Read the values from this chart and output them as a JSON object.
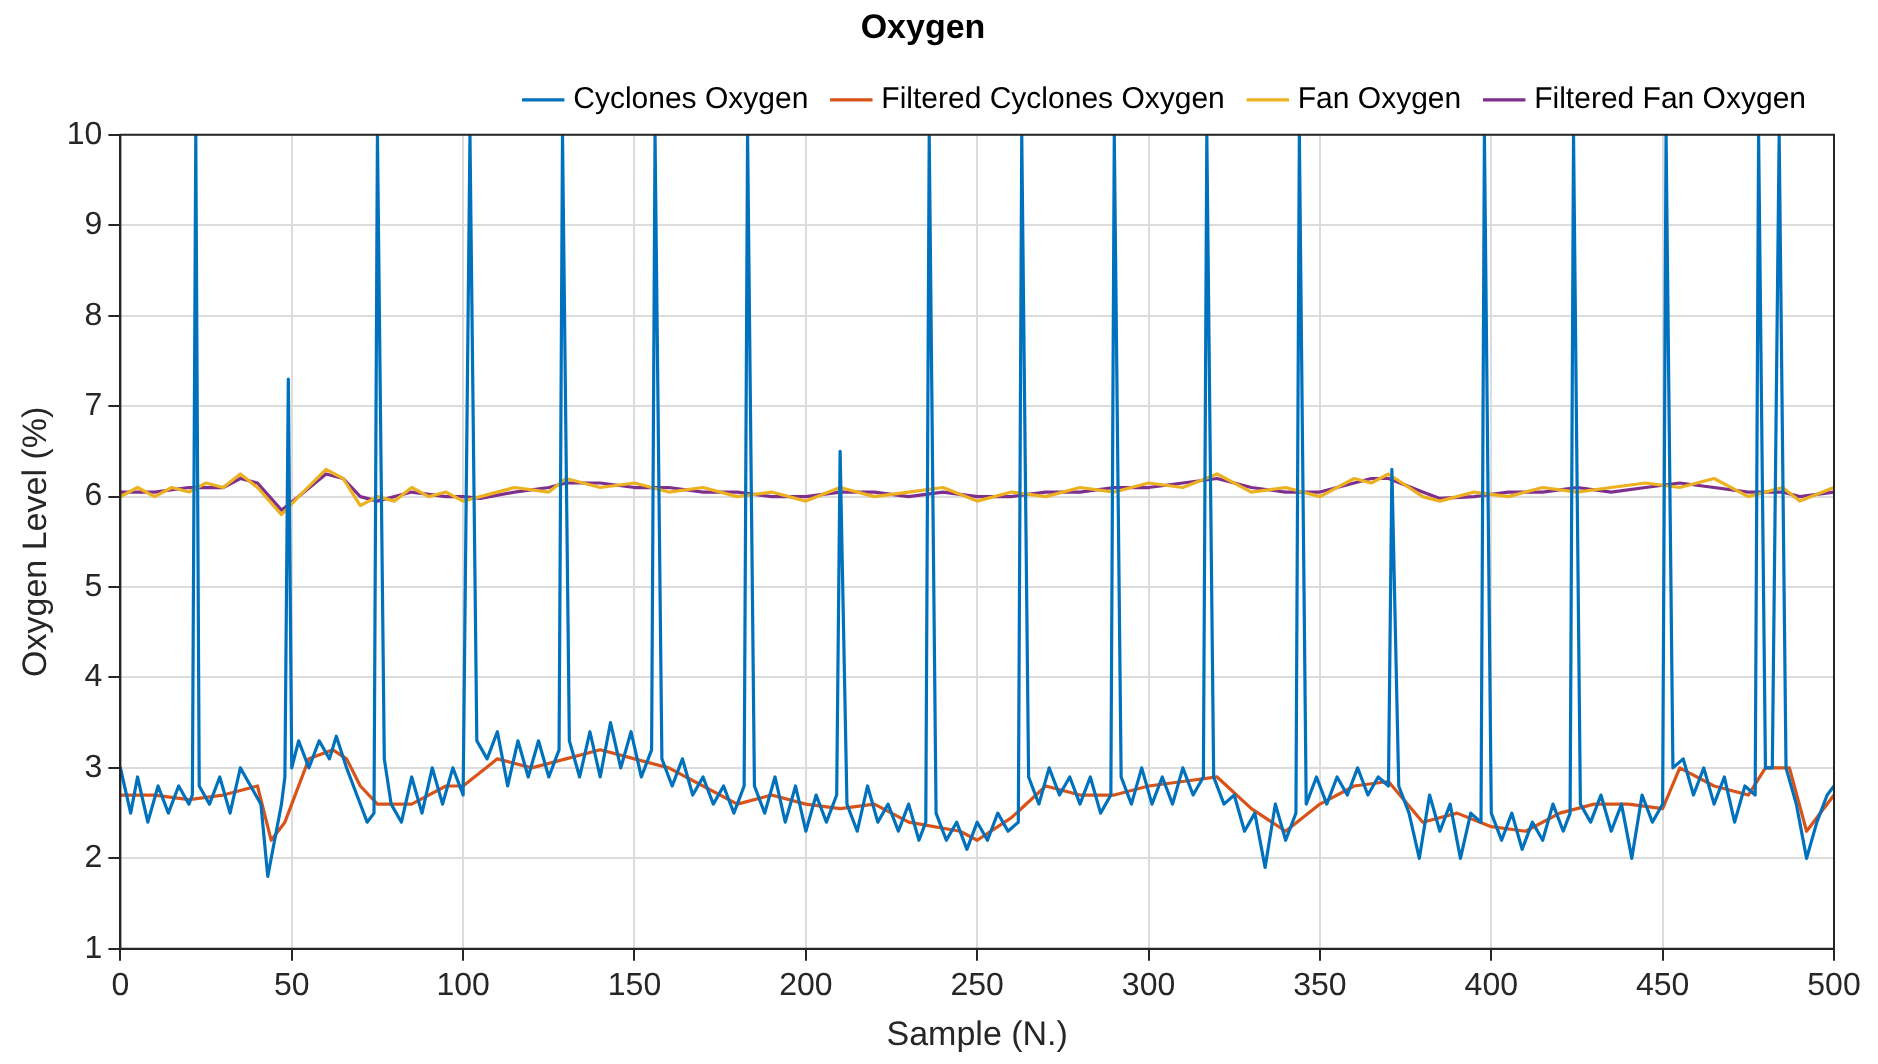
{
  "chart_data": {
    "type": "line",
    "title": "Oxygen",
    "xlabel": "Sample (N.)",
    "ylabel": "Oxygen Level (%)",
    "xlim": [
      0,
      500
    ],
    "xticks": [
      0,
      50,
      100,
      150,
      200,
      250,
      300,
      350,
      400,
      450,
      500
    ],
    "ylim": [
      1,
      10
    ],
    "yticks": [
      1,
      2,
      3,
      4,
      5,
      6,
      7,
      8,
      9,
      10
    ],
    "grid": true,
    "legend": "top right",
    "marker": "none",
    "line_style": "solid",
    "series": [
      {
        "name": "Cyclones Oxygen",
        "color": "#0072bd",
        "x": [
          0,
          3,
          5,
          8,
          11,
          14,
          17,
          20,
          21,
          22,
          23,
          26,
          29,
          32,
          35,
          38,
          41,
          43,
          45,
          47,
          48,
          49,
          50,
          52,
          55,
          58,
          61,
          63,
          66,
          69,
          72,
          74,
          75,
          77,
          79,
          82,
          85,
          88,
          91,
          94,
          97,
          100,
          102,
          104,
          107,
          110,
          113,
          116,
          119,
          122,
          125,
          128,
          129,
          131,
          134,
          137,
          140,
          143,
          146,
          149,
          152,
          155,
          156,
          158,
          161,
          164,
          167,
          170,
          173,
          176,
          179,
          182,
          183,
          185,
          188,
          191,
          194,
          197,
          200,
          203,
          206,
          209,
          210,
          212,
          215,
          218,
          221,
          224,
          227,
          230,
          233,
          235,
          236,
          238,
          241,
          244,
          247,
          250,
          253,
          256,
          259,
          262,
          263,
          265,
          268,
          271,
          274,
          277,
          280,
          283,
          286,
          289,
          290,
          292,
          295,
          298,
          301,
          304,
          307,
          310,
          313,
          316,
          317,
          319,
          322,
          325,
          328,
          331,
          334,
          337,
          340,
          343,
          344,
          346,
          349,
          352,
          355,
          358,
          361,
          364,
          367,
          370,
          371,
          373,
          376,
          379,
          382,
          385,
          388,
          391,
          394,
          397,
          398,
          400,
          403,
          406,
          409,
          412,
          415,
          418,
          421,
          423,
          424,
          426,
          429,
          432,
          435,
          438,
          441,
          444,
          447,
          450,
          451,
          453,
          456,
          459,
          462,
          465,
          468,
          471,
          474,
          477,
          478,
          480,
          482,
          484,
          486,
          489,
          492,
          495,
          498,
          500
        ],
        "values": [
          3.0,
          2.5,
          2.9,
          2.4,
          2.8,
          2.5,
          2.8,
          2.6,
          2.7,
          10,
          2.8,
          2.6,
          2.9,
          2.5,
          3.0,
          2.8,
          2.6,
          1.8,
          2.2,
          2.6,
          2.9,
          7.3,
          3.0,
          3.3,
          3.0,
          3.3,
          3.1,
          3.35,
          3.0,
          2.7,
          2.4,
          2.5,
          10,
          3.1,
          2.6,
          2.4,
          2.9,
          2.5,
          3.0,
          2.6,
          3.0,
          2.7,
          10,
          3.3,
          3.1,
          3.4,
          2.8,
          3.3,
          2.9,
          3.3,
          2.9,
          3.2,
          10,
          3.3,
          2.9,
          3.4,
          2.9,
          3.5,
          3.0,
          3.4,
          2.9,
          3.2,
          10,
          3.1,
          2.8,
          3.1,
          2.7,
          2.9,
          2.6,
          2.8,
          2.5,
          2.8,
          10,
          2.8,
          2.5,
          2.9,
          2.4,
          2.8,
          2.3,
          2.7,
          2.4,
          2.7,
          6.5,
          2.6,
          2.3,
          2.8,
          2.4,
          2.6,
          2.3,
          2.6,
          2.2,
          2.4,
          10,
          2.5,
          2.2,
          2.4,
          2.1,
          2.4,
          2.2,
          2.5,
          2.3,
          2.4,
          10,
          2.9,
          2.6,
          3.0,
          2.7,
          2.9,
          2.6,
          2.9,
          2.5,
          2.7,
          10,
          2.9,
          2.6,
          3.0,
          2.6,
          2.9,
          2.6,
          3.0,
          2.7,
          2.9,
          10,
          2.9,
          2.6,
          2.7,
          2.3,
          2.5,
          1.9,
          2.6,
          2.2,
          2.5,
          10,
          2.6,
          2.9,
          2.6,
          2.9,
          2.7,
          3.0,
          2.7,
          2.9,
          2.8,
          6.3,
          2.8,
          2.5,
          2.0,
          2.7,
          2.3,
          2.6,
          2.0,
          2.5,
          2.4,
          10,
          2.5,
          2.2,
          2.5,
          2.1,
          2.4,
          2.2,
          2.6,
          2.3,
          2.5,
          10,
          2.6,
          2.4,
          2.7,
          2.3,
          2.6,
          2.0,
          2.7,
          2.4,
          2.6,
          10,
          3.0,
          3.1,
          2.7,
          3.0,
          2.6,
          2.9,
          2.4,
          2.8,
          2.7,
          10,
          3.0,
          3.0,
          10,
          3.0,
          2.6,
          2.0,
          2.4,
          2.7,
          2.8
        ]
      },
      {
        "name": "Filtered Cyclones Oxygen",
        "color": "#d95319",
        "x": [
          0,
          10,
          20,
          30,
          40,
          44,
          48,
          55,
          62,
          66,
          70,
          75,
          85,
          95,
          100,
          110,
          120,
          130,
          140,
          150,
          160,
          170,
          180,
          190,
          200,
          210,
          220,
          230,
          245,
          250,
          260,
          270,
          280,
          290,
          300,
          310,
          320,
          330,
          340,
          350,
          360,
          370,
          380,
          390,
          400,
          410,
          420,
          430,
          440,
          450,
          455,
          465,
          475,
          480,
          487,
          492,
          500
        ],
        "values": [
          2.7,
          2.7,
          2.65,
          2.7,
          2.8,
          2.2,
          2.4,
          3.1,
          3.2,
          3.1,
          2.8,
          2.6,
          2.6,
          2.8,
          2.8,
          3.1,
          3.0,
          3.1,
          3.2,
          3.1,
          3.0,
          2.8,
          2.6,
          2.7,
          2.6,
          2.55,
          2.6,
          2.4,
          2.3,
          2.2,
          2.45,
          2.8,
          2.7,
          2.7,
          2.8,
          2.85,
          2.9,
          2.55,
          2.3,
          2.6,
          2.8,
          2.85,
          2.4,
          2.5,
          2.35,
          2.3,
          2.5,
          2.6,
          2.6,
          2.55,
          3.0,
          2.8,
          2.7,
          3.0,
          3.0,
          2.3,
          2.7
        ]
      },
      {
        "name": "Fan Oxygen",
        "color": "#edb120",
        "x": [
          0,
          5,
          10,
          15,
          20,
          25,
          30,
          35,
          40,
          47,
          52,
          60,
          65,
          70,
          75,
          80,
          85,
          90,
          95,
          100,
          105,
          115,
          125,
          130,
          140,
          150,
          160,
          170,
          180,
          190,
          200,
          210,
          220,
          230,
          240,
          250,
          260,
          270,
          280,
          290,
          300,
          310,
          320,
          330,
          340,
          350,
          360,
          365,
          370,
          380,
          385,
          395,
          405,
          415,
          425,
          435,
          445,
          455,
          465,
          475,
          485,
          490,
          500
        ],
        "values": [
          6.0,
          6.1,
          6.0,
          6.1,
          6.05,
          6.15,
          6.1,
          6.25,
          6.1,
          5.8,
          6.0,
          6.3,
          6.2,
          5.9,
          6.0,
          5.95,
          6.1,
          6.0,
          6.05,
          5.95,
          6.0,
          6.1,
          6.05,
          6.2,
          6.1,
          6.15,
          6.05,
          6.1,
          6.0,
          6.05,
          5.95,
          6.1,
          6.0,
          6.05,
          6.1,
          5.95,
          6.05,
          6.0,
          6.1,
          6.05,
          6.15,
          6.1,
          6.25,
          6.05,
          6.1,
          6.0,
          6.2,
          6.15,
          6.25,
          6.0,
          5.95,
          6.05,
          6.0,
          6.1,
          6.05,
          6.1,
          6.15,
          6.1,
          6.2,
          6.0,
          6.1,
          5.95,
          6.1
        ]
      },
      {
        "name": "Filtered Fan Oxygen",
        "color": "#7e2f8e",
        "x": [
          0,
          10,
          20,
          30,
          35,
          40,
          47,
          52,
          60,
          65,
          70,
          75,
          85,
          95,
          100,
          105,
          115,
          125,
          130,
          140,
          150,
          160,
          170,
          180,
          190,
          200,
          210,
          220,
          230,
          240,
          250,
          260,
          270,
          280,
          290,
          300,
          310,
          320,
          330,
          340,
          350,
          360,
          365,
          370,
          380,
          385,
          395,
          405,
          415,
          425,
          435,
          445,
          455,
          465,
          475,
          485,
          490,
          500
        ],
        "values": [
          6.05,
          6.05,
          6.1,
          6.1,
          6.2,
          6.15,
          5.85,
          6.0,
          6.25,
          6.2,
          6.0,
          5.95,
          6.05,
          6.0,
          6.0,
          5.98,
          6.05,
          6.1,
          6.15,
          6.15,
          6.1,
          6.1,
          6.05,
          6.05,
          6.0,
          6.0,
          6.05,
          6.05,
          6.0,
          6.05,
          6.0,
          6.0,
          6.05,
          6.05,
          6.1,
          6.1,
          6.15,
          6.2,
          6.1,
          6.05,
          6.05,
          6.15,
          6.2,
          6.2,
          6.05,
          5.98,
          6.0,
          6.05,
          6.05,
          6.1,
          6.05,
          6.1,
          6.15,
          6.1,
          6.05,
          6.05,
          6.0,
          6.05
        ]
      }
    ]
  }
}
